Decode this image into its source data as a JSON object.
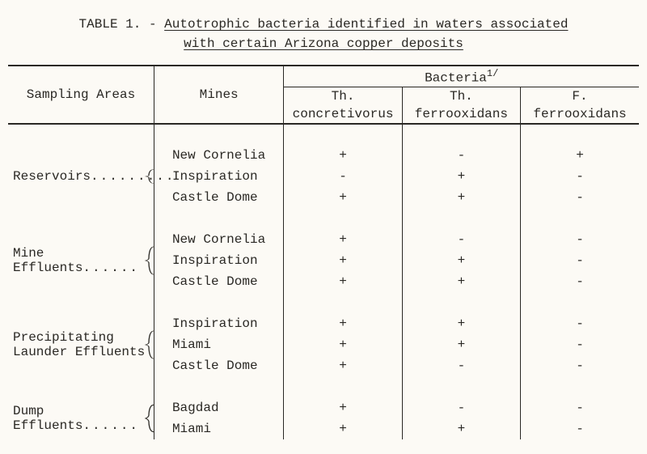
{
  "title": {
    "prefix": "TABLE 1. - ",
    "line1": "Autotrophic bacteria identified in waters associated",
    "line2": "with certain Arizona copper deposits"
  },
  "header": {
    "sampling_areas": "Sampling Areas",
    "mines": "Mines",
    "bacteria_group": "Bacteria",
    "bacteria_footnote_mark": "1/",
    "species": [
      {
        "genus": "Th.",
        "name": "concretivorus"
      },
      {
        "genus": "Th.",
        "name": "ferrooxidans"
      },
      {
        "genus": "F.",
        "name": "ferrooxidans"
      }
    ]
  },
  "groups": [
    {
      "area": "Reservoirs",
      "dots": ".........",
      "rows": [
        {
          "mine": "New Cornelia",
          "vals": [
            "+",
            "-",
            "+"
          ]
        },
        {
          "mine": "Inspiration",
          "vals": [
            "-",
            "+",
            "-"
          ]
        },
        {
          "mine": "Castle Dome",
          "vals": [
            "+",
            "+",
            "-"
          ]
        }
      ]
    },
    {
      "area": "Mine Effluents",
      "dots": "......",
      "rows": [
        {
          "mine": "New Cornelia",
          "vals": [
            "+",
            "-",
            "-"
          ]
        },
        {
          "mine": "Inspiration",
          "vals": [
            "+",
            "+",
            "-"
          ]
        },
        {
          "mine": "Castle Dome",
          "vals": [
            "+",
            "+",
            "-"
          ]
        }
      ]
    },
    {
      "area": "Precipitating\n Launder Effluents",
      "dots": "",
      "rows": [
        {
          "mine": "Inspiration",
          "vals": [
            "+",
            "+",
            "-"
          ]
        },
        {
          "mine": "Miami",
          "vals": [
            "+",
            "+",
            "-"
          ]
        },
        {
          "mine": "Castle Dome",
          "vals": [
            "+",
            "-",
            "-"
          ]
        }
      ]
    },
    {
      "area": "Dump Effluents",
      "dots": "......",
      "rows": [
        {
          "mine": "Bagdad",
          "vals": [
            "+",
            "-",
            "-"
          ]
        },
        {
          "mine": "Miami",
          "vals": [
            "+",
            "+",
            "-"
          ]
        }
      ]
    }
  ]
}
